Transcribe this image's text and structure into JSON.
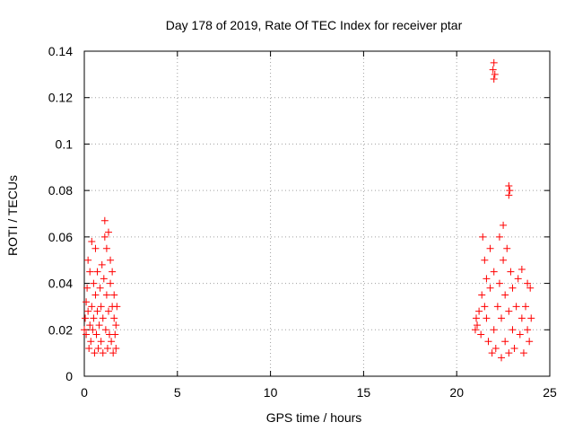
{
  "chart_data": {
    "type": "scatter",
    "title": "Day 178 of 2019, Rate Of TEC Index for receiver ptar",
    "xlabel": "GPS time / hours",
    "ylabel": "ROTI / TECUs",
    "xlim": [
      0,
      25
    ],
    "ylim": [
      0,
      0.14
    ],
    "xticks": [
      "0",
      "5",
      "10",
      "15",
      "20",
      "25"
    ],
    "yticks": [
      "0",
      "0.02",
      "0.04",
      "0.06",
      "0.08",
      "0.1",
      "0.12",
      "0.14"
    ],
    "grid": true,
    "marker": "+",
    "series": [
      {
        "color": "#ff0000",
        "points": [
          [
            0.0,
            0.02
          ],
          [
            0.05,
            0.025
          ],
          [
            0.1,
            0.018
          ],
          [
            0.1,
            0.032
          ],
          [
            0.15,
            0.038
          ],
          [
            0.2,
            0.028
          ],
          [
            0.2,
            0.05
          ],
          [
            0.25,
            0.012
          ],
          [
            0.3,
            0.022
          ],
          [
            0.3,
            0.045
          ],
          [
            0.35,
            0.015
          ],
          [
            0.4,
            0.03
          ],
          [
            0.4,
            0.058
          ],
          [
            0.45,
            0.02
          ],
          [
            0.5,
            0.025
          ],
          [
            0.5,
            0.04
          ],
          [
            0.55,
            0.01
          ],
          [
            0.6,
            0.035
          ],
          [
            0.6,
            0.055
          ],
          [
            0.65,
            0.018
          ],
          [
            0.7,
            0.028
          ],
          [
            0.7,
            0.045
          ],
          [
            0.75,
            0.012
          ],
          [
            0.8,
            0.022
          ],
          [
            0.85,
            0.038
          ],
          [
            0.9,
            0.015
          ],
          [
            0.9,
            0.03
          ],
          [
            0.95,
            0.048
          ],
          [
            1.0,
            0.01
          ],
          [
            1.0,
            0.025
          ],
          [
            1.05,
            0.042
          ],
          [
            1.1,
            0.06
          ],
          [
            1.1,
            0.067
          ],
          [
            1.15,
            0.02
          ],
          [
            1.2,
            0.035
          ],
          [
            1.2,
            0.055
          ],
          [
            1.25,
            0.012
          ],
          [
            1.3,
            0.028
          ],
          [
            1.3,
            0.062
          ],
          [
            1.35,
            0.018
          ],
          [
            1.4,
            0.04
          ],
          [
            1.4,
            0.05
          ],
          [
            1.45,
            0.015
          ],
          [
            1.5,
            0.03
          ],
          [
            1.5,
            0.045
          ],
          [
            1.55,
            0.01
          ],
          [
            1.6,
            0.025
          ],
          [
            1.6,
            0.035
          ],
          [
            1.65,
            0.018
          ],
          [
            1.7,
            0.022
          ],
          [
            1.75,
            0.03
          ],
          [
            1.7,
            0.012
          ],
          [
            21.0,
            0.02
          ],
          [
            21.05,
            0.025
          ],
          [
            21.1,
            0.022
          ],
          [
            21.2,
            0.028
          ],
          [
            21.3,
            0.018
          ],
          [
            21.35,
            0.035
          ],
          [
            21.4,
            0.06
          ],
          [
            21.5,
            0.03
          ],
          [
            21.5,
            0.05
          ],
          [
            21.6,
            0.025
          ],
          [
            21.6,
            0.042
          ],
          [
            21.7,
            0.015
          ],
          [
            21.8,
            0.038
          ],
          [
            21.8,
            0.055
          ],
          [
            21.9,
            0.01
          ],
          [
            22.0,
            0.02
          ],
          [
            22.0,
            0.045
          ],
          [
            22.1,
            0.012
          ],
          [
            22.2,
            0.03
          ],
          [
            22.3,
            0.04
          ],
          [
            22.3,
            0.06
          ],
          [
            22.4,
            0.008
          ],
          [
            22.4,
            0.025
          ],
          [
            22.5,
            0.05
          ],
          [
            22.5,
            0.065
          ],
          [
            22.6,
            0.015
          ],
          [
            22.6,
            0.035
          ],
          [
            22.7,
            0.055
          ],
          [
            22.8,
            0.01
          ],
          [
            22.8,
            0.028
          ],
          [
            22.9,
            0.045
          ],
          [
            23.0,
            0.02
          ],
          [
            23.0,
            0.038
          ],
          [
            23.1,
            0.012
          ],
          [
            23.2,
            0.03
          ],
          [
            23.3,
            0.042
          ],
          [
            23.4,
            0.018
          ],
          [
            23.5,
            0.025
          ],
          [
            23.5,
            0.046
          ],
          [
            23.6,
            0.01
          ],
          [
            23.7,
            0.03
          ],
          [
            23.8,
            0.04
          ],
          [
            23.8,
            0.02
          ],
          [
            23.9,
            0.015
          ],
          [
            24.0,
            0.025
          ],
          [
            23.95,
            0.038
          ],
          [
            21.95,
            0.132
          ],
          [
            22.0,
            0.135
          ],
          [
            22.05,
            0.13
          ],
          [
            22.0,
            0.128
          ],
          [
            22.8,
            0.082
          ],
          [
            22.85,
            0.08
          ],
          [
            22.8,
            0.078
          ]
        ]
      }
    ]
  }
}
